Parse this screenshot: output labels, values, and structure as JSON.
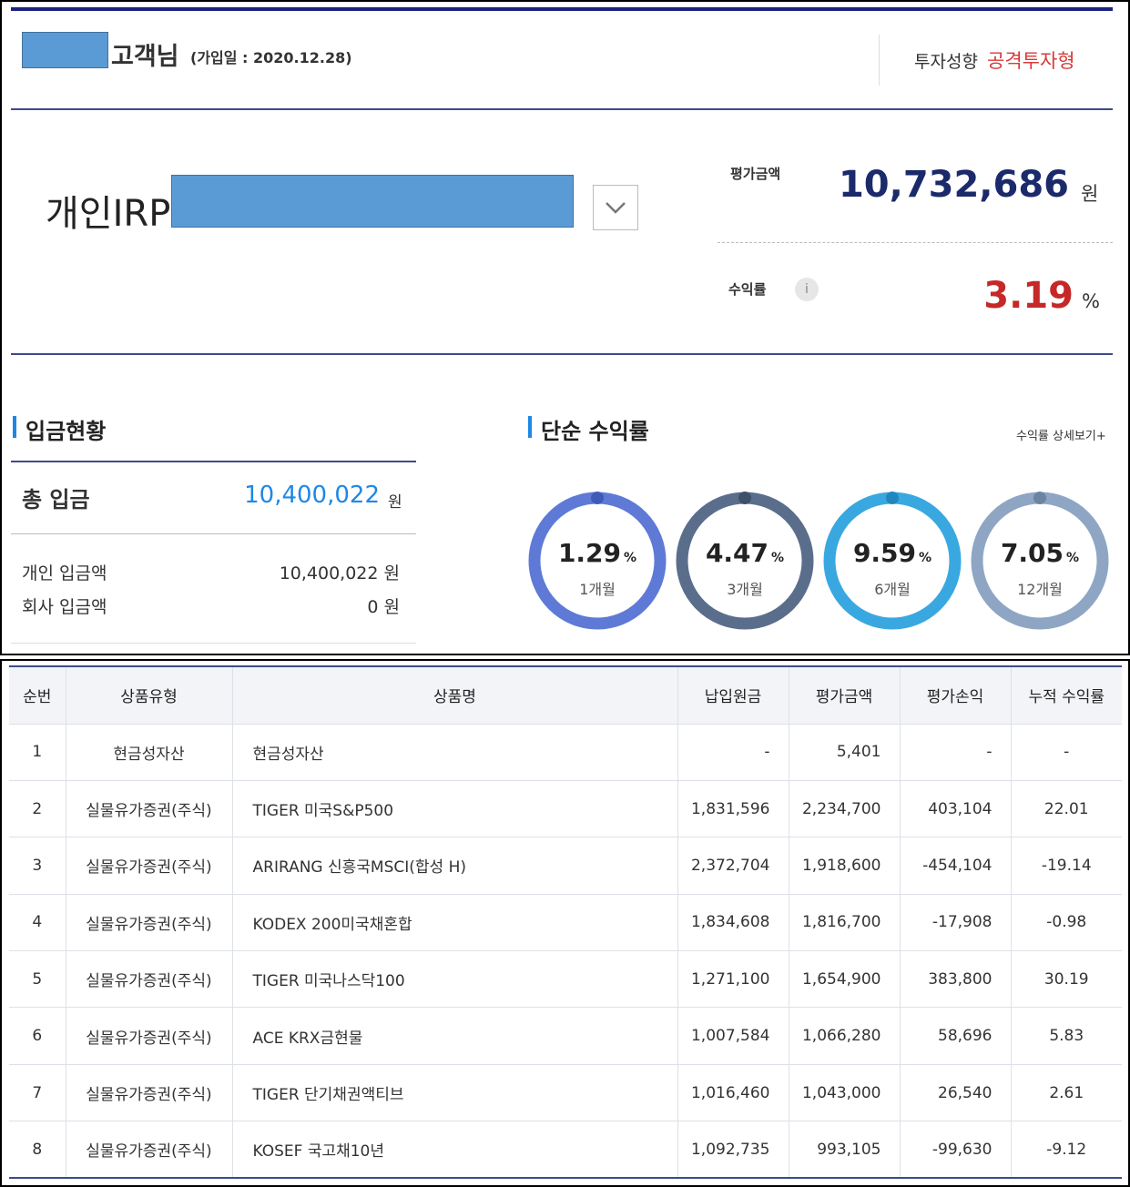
{
  "header": {
    "customer_suffix": "고객님",
    "join_date": "(가입일 : 2020.12.28)",
    "invest_style_label": "투자성향",
    "invest_style_value": "공격투자형",
    "invest_style_color": "#d63b3b"
  },
  "account": {
    "title": "개인IRP",
    "dropdown_icon": "chevron-down-icon",
    "eval_label": "평가금액",
    "eval_value": "10,732,686",
    "eval_unit": "원",
    "rate_label": "수익률",
    "rate_info_icon": "i",
    "rate_value": "3.19",
    "rate_unit": "%",
    "rate_color": "#c62828"
  },
  "deposit": {
    "title": "입금현황",
    "total_label": "총 입금",
    "total_value": "10,400,022",
    "total_unit": "원",
    "personal_label": "개인 입금액",
    "personal_value": "10,400,022 원",
    "company_label": "회사 입금액",
    "company_value": "0 원"
  },
  "returns": {
    "title": "단순 수익률",
    "detail_link": "수익률 상세보기+",
    "unit": "%",
    "rings": [
      {
        "value": "1.29",
        "period": "1개월",
        "color": "#5e7ad6"
      },
      {
        "value": "4.47",
        "period": "3개월",
        "color": "#5a6e8c"
      },
      {
        "value": "9.59",
        "period": "6개월",
        "color": "#39a8e0"
      },
      {
        "value": "7.05",
        "period": "12개월",
        "color": "#8ea6c4"
      }
    ]
  },
  "table": {
    "headers": [
      "순번",
      "상품유형",
      "상품명",
      "납입원금",
      "평가금액",
      "평가손익",
      "누적 수익률"
    ],
    "rows": [
      [
        "1",
        "현금성자산",
        "현금성자산",
        "-",
        "5,401",
        "-",
        "-"
      ],
      [
        "2",
        "실물유가증권(주식)",
        "TIGER 미국S&P500",
        "1,831,596",
        "2,234,700",
        "403,104",
        "22.01"
      ],
      [
        "3",
        "실물유가증권(주식)",
        "ARIRANG 신흥국MSCI(합성 H)",
        "2,372,704",
        "1,918,600",
        "-454,104",
        "-19.14"
      ],
      [
        "4",
        "실물유가증권(주식)",
        "KODEX 200미국채혼합",
        "1,834,608",
        "1,816,700",
        "-17,908",
        "-0.98"
      ],
      [
        "5",
        "실물유가증권(주식)",
        "TIGER 미국나스닥100",
        "1,271,100",
        "1,654,900",
        "383,800",
        "30.19"
      ],
      [
        "6",
        "실물유가증권(주식)",
        "ACE KRX금현물",
        "1,007,584",
        "1,066,280",
        "58,696",
        "5.83"
      ],
      [
        "7",
        "실물유가증권(주식)",
        "TIGER 단기채권액티브",
        "1,016,460",
        "1,043,000",
        "26,540",
        "2.61"
      ],
      [
        "8",
        "실물유가증권(주식)",
        "KOSEF 국고채10년",
        "1,092,735",
        "993,105",
        "-99,630",
        "-9.12"
      ]
    ]
  }
}
